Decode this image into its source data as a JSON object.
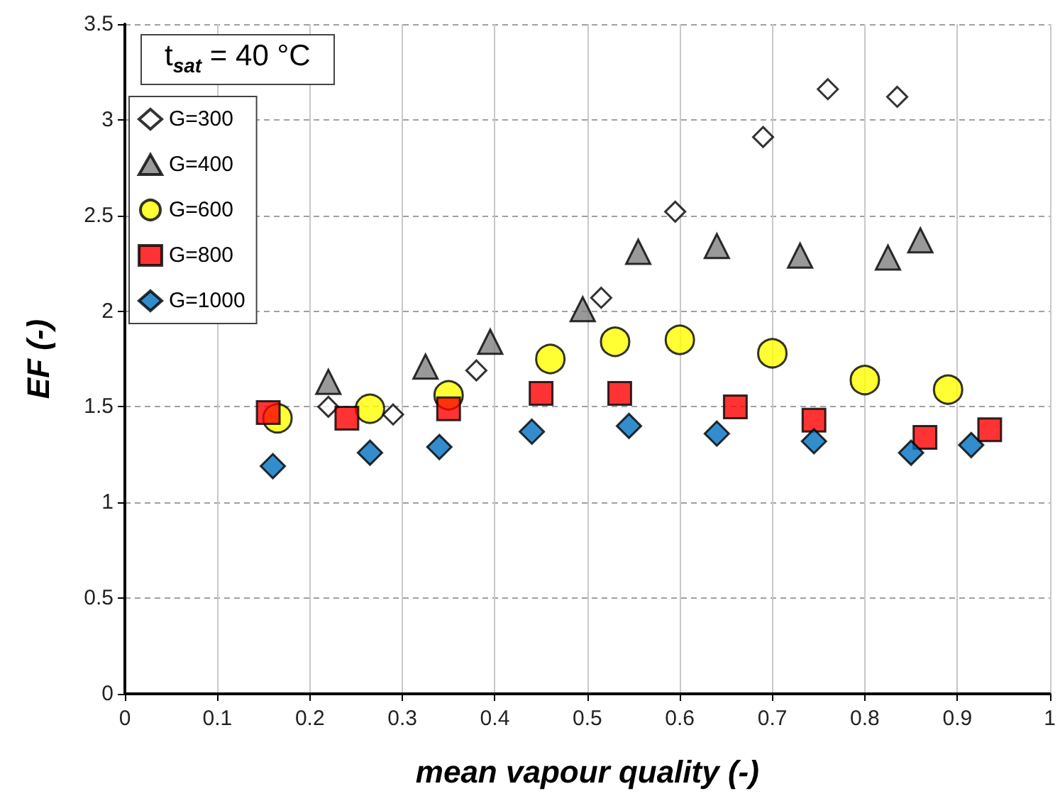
{
  "chart_data": {
    "type": "scatter",
    "xlabel": "mean vapour quality (-)",
    "ylabel": "EF (-)",
    "annotations": [
      "t$_{sat}$ = 40 °C"
    ],
    "xlim": [
      0,
      1
    ],
    "xticks": [
      0,
      0.1,
      0.2,
      0.3,
      0.4,
      0.5,
      0.6,
      0.7,
      0.8,
      0.9,
      1
    ],
    "ylim": [
      0,
      3.5
    ],
    "yticks": [
      0,
      0.5,
      1,
      1.5,
      2,
      2.5,
      3,
      3.5
    ],
    "grid": true,
    "legend": "top left",
    "series": [
      {
        "name": "G=300",
        "color": "#ffffff",
        "marker": "diamond",
        "x": [
          0.22,
          0.29,
          0.38,
          0.515,
          0.595,
          0.69,
          0.76,
          0.835
        ],
        "values": [
          1.5,
          1.46,
          1.69,
          2.07,
          2.52,
          2.91,
          3.16,
          3.12
        ]
      },
      {
        "name": "G=400",
        "color": "#808080",
        "marker": "triangle",
        "x": [
          0.22,
          0.325,
          0.395,
          0.495,
          0.555,
          0.64,
          0.73,
          0.825,
          0.86
        ],
        "values": [
          1.63,
          1.71,
          1.84,
          2.01,
          2.31,
          2.34,
          2.29,
          2.28,
          2.37
        ]
      },
      {
        "name": "G=600",
        "color": "#ffff00",
        "marker": "circle",
        "x": [
          0.165,
          0.265,
          0.35,
          0.46,
          0.53,
          0.6,
          0.7,
          0.8,
          0.89
        ],
        "values": [
          1.44,
          1.49,
          1.56,
          1.75,
          1.84,
          1.85,
          1.78,
          1.64,
          1.59
        ]
      },
      {
        "name": "G=800",
        "color": "#ff0000",
        "marker": "square",
        "x": [
          0.155,
          0.24,
          0.35,
          0.45,
          0.535,
          0.66,
          0.745,
          0.865,
          0.935
        ],
        "values": [
          1.47,
          1.44,
          1.49,
          1.57,
          1.57,
          1.5,
          1.43,
          1.34,
          1.38
        ]
      },
      {
        "name": "G=1000",
        "color": "#0070c0",
        "marker": "diamond",
        "x": [
          0.16,
          0.265,
          0.34,
          0.44,
          0.545,
          0.64,
          0.745,
          0.85,
          0.915
        ],
        "values": [
          1.19,
          1.26,
          1.29,
          1.37,
          1.4,
          1.36,
          1.32,
          1.26,
          1.3
        ]
      }
    ]
  }
}
